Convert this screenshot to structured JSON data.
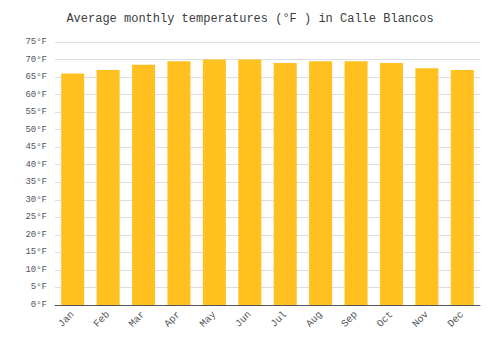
{
  "chart_data": {
    "type": "bar",
    "title": "Average monthly temperatures (°F ) in Calle Blancos",
    "categories": [
      "Jan",
      "Feb",
      "Mar",
      "Apr",
      "May",
      "Jun",
      "Jul",
      "Aug",
      "Sep",
      "Oct",
      "Nov",
      "Dec"
    ],
    "values": [
      66,
      67,
      68.5,
      69.5,
      70,
      70,
      69,
      69.5,
      69.5,
      69,
      67.5,
      67
    ],
    "color": "#FFC020",
    "ylim": [
      0,
      75
    ],
    "yticks": [
      {
        "value": 0,
        "label": "0°F"
      },
      {
        "value": 5,
        "label": "5°F"
      },
      {
        "value": 10,
        "label": "10°F"
      },
      {
        "value": 15,
        "label": "15°F"
      },
      {
        "value": 20,
        "label": "20°F"
      },
      {
        "value": 25,
        "label": "25°F"
      },
      {
        "value": 30,
        "label": "30°F"
      },
      {
        "value": 35,
        "label": "35°F"
      },
      {
        "value": 40,
        "label": "40°F"
      },
      {
        "value": 45,
        "label": "45°F"
      },
      {
        "value": 50,
        "label": "50°F"
      },
      {
        "value": 55,
        "label": "55°F"
      },
      {
        "value": 60,
        "label": "60°F"
      },
      {
        "value": 65,
        "label": "65°F"
      },
      {
        "value": 70,
        "label": "70°F"
      },
      {
        "value": 75,
        "label": "75°F"
      }
    ],
    "grid": true
  }
}
